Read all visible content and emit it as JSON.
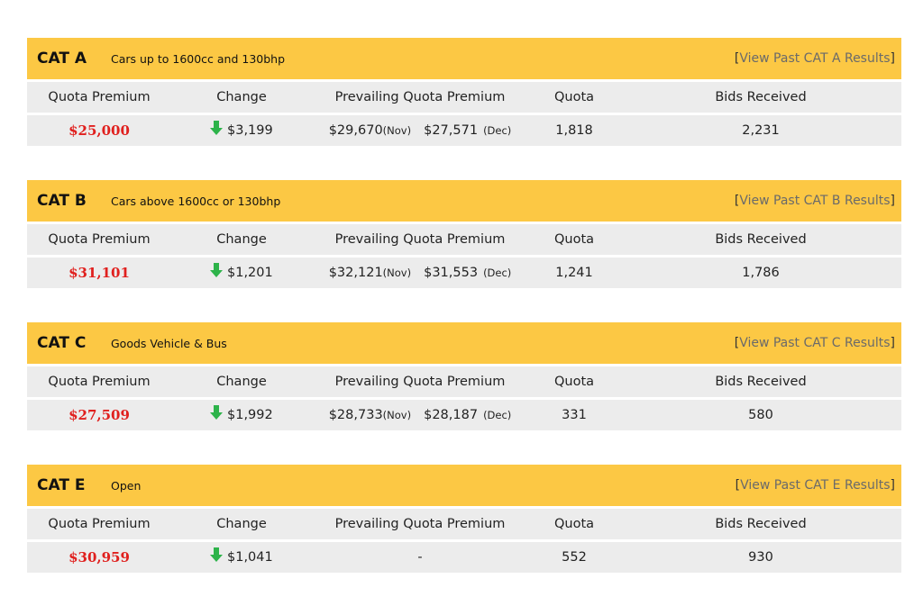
{
  "link_brackets": [
    "[",
    "]"
  ],
  "sections": [
    {
      "category": "CAT A",
      "description": "Cars up to 1600cc and 130bhp",
      "link": "View Past CAT A Results",
      "columns": [
        "Quota Premium",
        "Change",
        "Prevailing Quota Premium",
        "Quota",
        "Bids Received"
      ],
      "premium": "$25,000",
      "change": "$3,199",
      "prevailing": [
        "$29,670",
        "(Nov)",
        "$27,571",
        "(Dec)"
      ],
      "quota": "1,818",
      "bids": "2,231"
    },
    {
      "category": "CAT B",
      "description": "Cars above 1600cc or 130bhp",
      "link": "View Past CAT B Results",
      "columns": [
        "Quota Premium",
        "Change",
        "Prevailing Quota Premium",
        "Quota",
        "Bids Received"
      ],
      "premium": "$31,101",
      "change": "$1,201",
      "prevailing": [
        "$32,121",
        "(Nov)",
        "$31,553",
        "(Dec)"
      ],
      "quota": "1,241",
      "bids": "1,786"
    },
    {
      "category": "CAT C",
      "description": "Goods Vehicle & Bus",
      "link": "View Past CAT C Results",
      "columns": [
        "Quota Premium",
        "Change",
        "Prevailing Quota Premium",
        "Quota",
        "Bids Received"
      ],
      "premium": "$27,509",
      "change": "$1,992",
      "prevailing": [
        "$28,733",
        "(Nov)",
        "$28,187",
        "(Dec)"
      ],
      "quota": "331",
      "bids": "580"
    },
    {
      "category": "CAT E",
      "description": "Open",
      "link": "View Past CAT E Results",
      "columns": [
        "Quota Premium",
        "Change",
        "Prevailing Quota Premium",
        "Quota",
        "Bids Received"
      ],
      "premium": "$30,959",
      "change": "$1,041",
      "prevailing": [
        "-"
      ],
      "quota": "552",
      "bids": "930"
    }
  ]
}
